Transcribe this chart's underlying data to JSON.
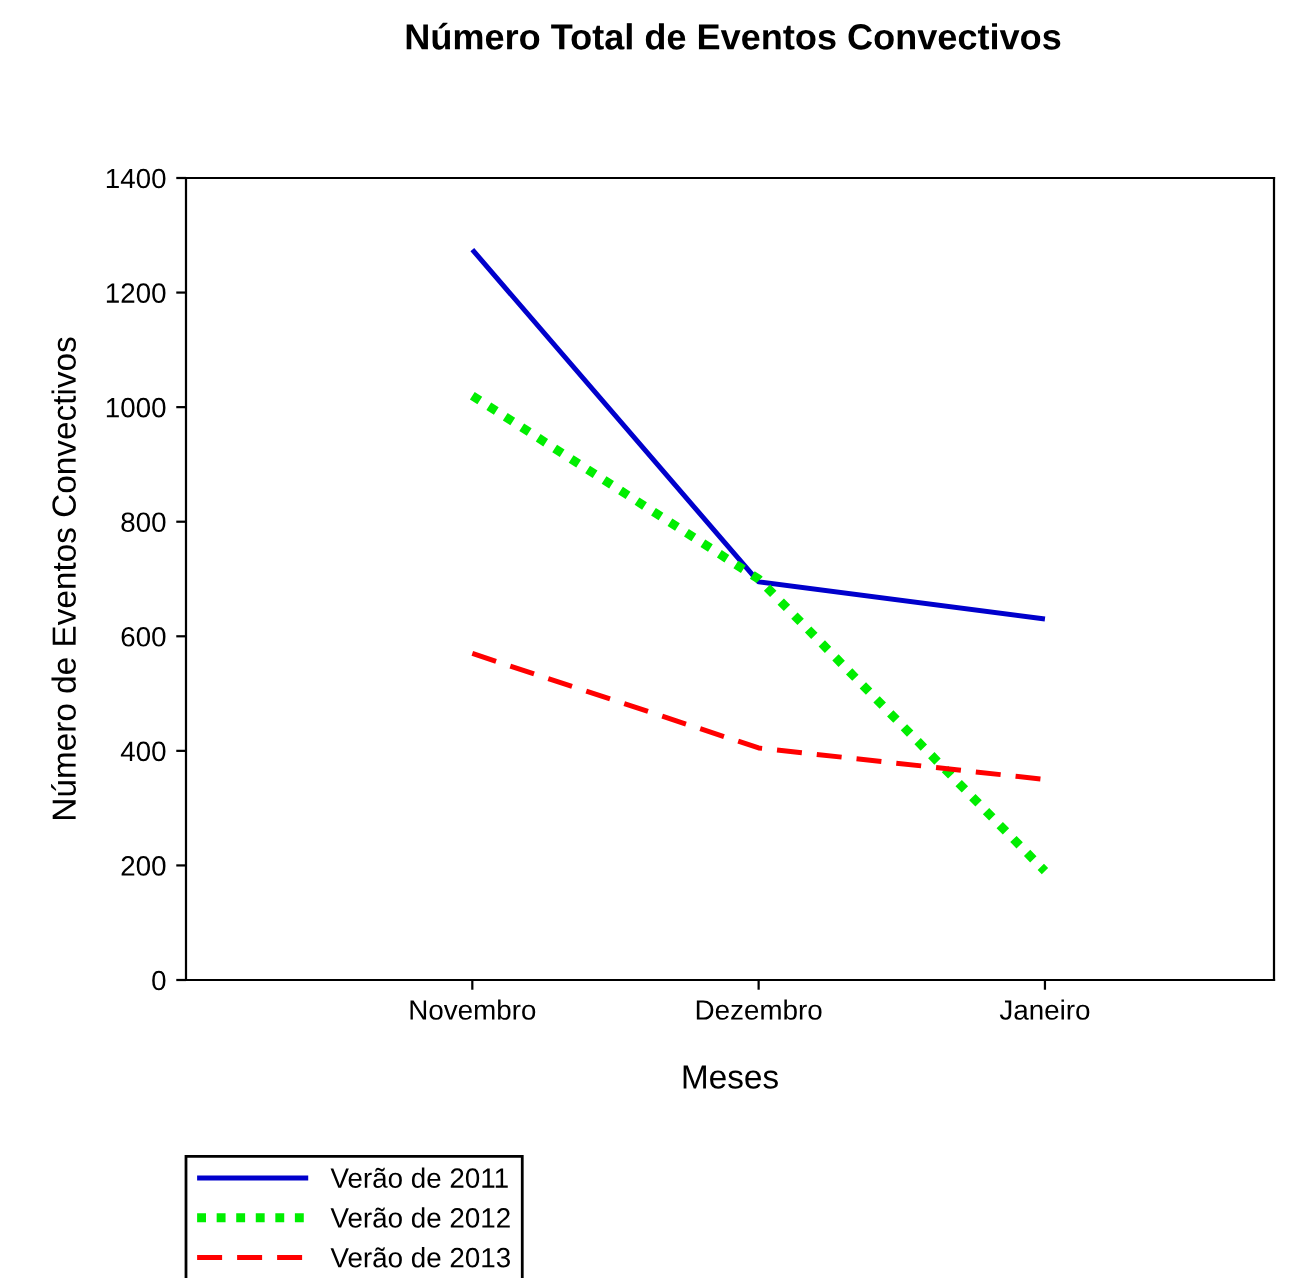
{
  "chart_data": {
    "type": "line",
    "title": "Número Total de Eventos Convectivos",
    "xlabel": "Meses",
    "ylabel": "Número de Eventos Convectivos",
    "categories": [
      "Novembro",
      "Dezembro",
      "Janeiro"
    ],
    "series": [
      {
        "name": "Verão de 2011",
        "color": "#0000cc",
        "values": [
          1275,
          695,
          630
        ],
        "line_style": "solid"
      },
      {
        "name": "Verão de 2012",
        "color": "#00ee00",
        "values": [
          1020,
          700,
          190
        ],
        "line_style": "dotted"
      },
      {
        "name": "Verão de 2013",
        "color": "#ff0000",
        "values": [
          570,
          405,
          350
        ],
        "line_style": "dashed"
      }
    ],
    "ylim": [
      0,
      1400
    ],
    "yticks": [
      0,
      200,
      400,
      600,
      800,
      1000,
      1200,
      1400
    ],
    "grid": false,
    "legend": "bottom left",
    "marker": "none"
  }
}
